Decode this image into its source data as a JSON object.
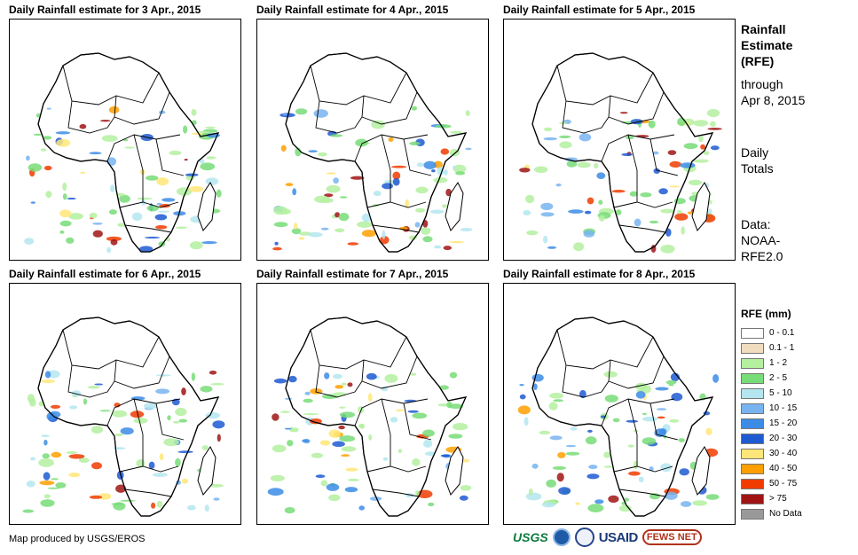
{
  "panels": [
    {
      "title": "Daily Rainfall estimate for 3 Apr., 2015"
    },
    {
      "title": "Daily Rainfall estimate for 4 Apr., 2015"
    },
    {
      "title": "Daily Rainfall estimate for 5 Apr., 2015"
    },
    {
      "title": "Daily Rainfall estimate for 6 Apr., 2015"
    },
    {
      "title": "Daily Rainfall estimate for 7 Apr., 2015"
    },
    {
      "title": "Daily Rainfall estimate for 8 Apr., 2015"
    }
  ],
  "side": {
    "title_lines": [
      "Rainfall",
      "Estimate",
      "(RFE)"
    ],
    "through_lines": [
      "through",
      "Apr 8, 2015"
    ],
    "totals_lines": [
      "Daily",
      "Totals"
    ],
    "data_lines": [
      "Data:",
      "NOAA-",
      "RFE2.0"
    ]
  },
  "legend": {
    "title": "RFE (mm)",
    "items": [
      {
        "label": "0 - 0.1",
        "color": "#ffffff"
      },
      {
        "label": "0.1 - 1",
        "color": "#f0dcbe"
      },
      {
        "label": "1 - 2",
        "color": "#b4f0a0"
      },
      {
        "label": "2 - 5",
        "color": "#78dc78"
      },
      {
        "label": "5 - 10",
        "color": "#b4e6f0"
      },
      {
        "label": "10 - 15",
        "color": "#78b4f0"
      },
      {
        "label": "15 - 20",
        "color": "#3c8ce6"
      },
      {
        "label": "20 - 30",
        "color": "#1e5ad2"
      },
      {
        "label": "30 - 40",
        "color": "#ffe678"
      },
      {
        "label": "40 - 50",
        "color": "#ffa000"
      },
      {
        "label": "50 - 75",
        "color": "#f03c00"
      },
      {
        "label": "> 75",
        "color": "#a01414"
      },
      {
        "label": "No Data",
        "color": "#999999"
      }
    ]
  },
  "credit": "Map produced by USGS/EROS",
  "logos": {
    "usgs": "USGS",
    "usaid": "USAID",
    "fews": "FEWS NET"
  }
}
